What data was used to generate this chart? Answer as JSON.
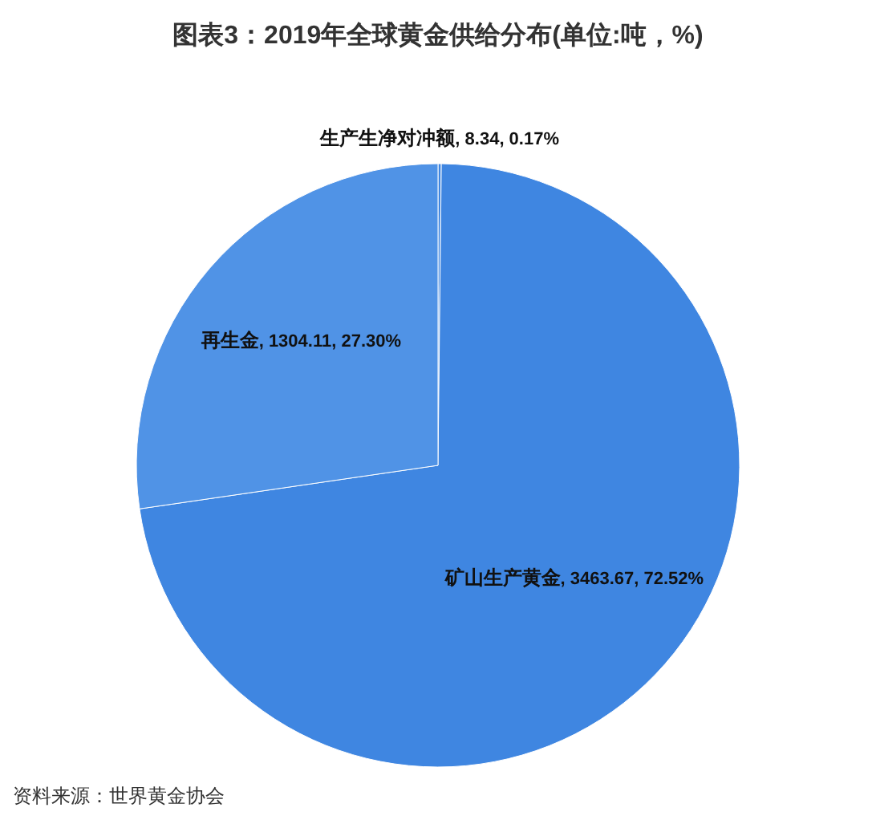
{
  "chart_data": {
    "type": "pie",
    "title": "图表3：2019年全球黄金供给分布(单位:吨，%)",
    "categories": [
      "生产生净对冲额",
      "矿山生产黄金",
      "再生金"
    ],
    "values": [
      8.34,
      3463.67,
      1304.11
    ],
    "colors": [
      "#3f86e1",
      "#3f86e1",
      "#5093e6"
    ],
    "value_labels": [
      ", 8.34, 0.17%",
      ", 3463.67, 72.52%",
      ", 1304.11, 27.30%"
    ],
    "annotations": [
      "资料来源：世界黄金协会"
    ]
  }
}
